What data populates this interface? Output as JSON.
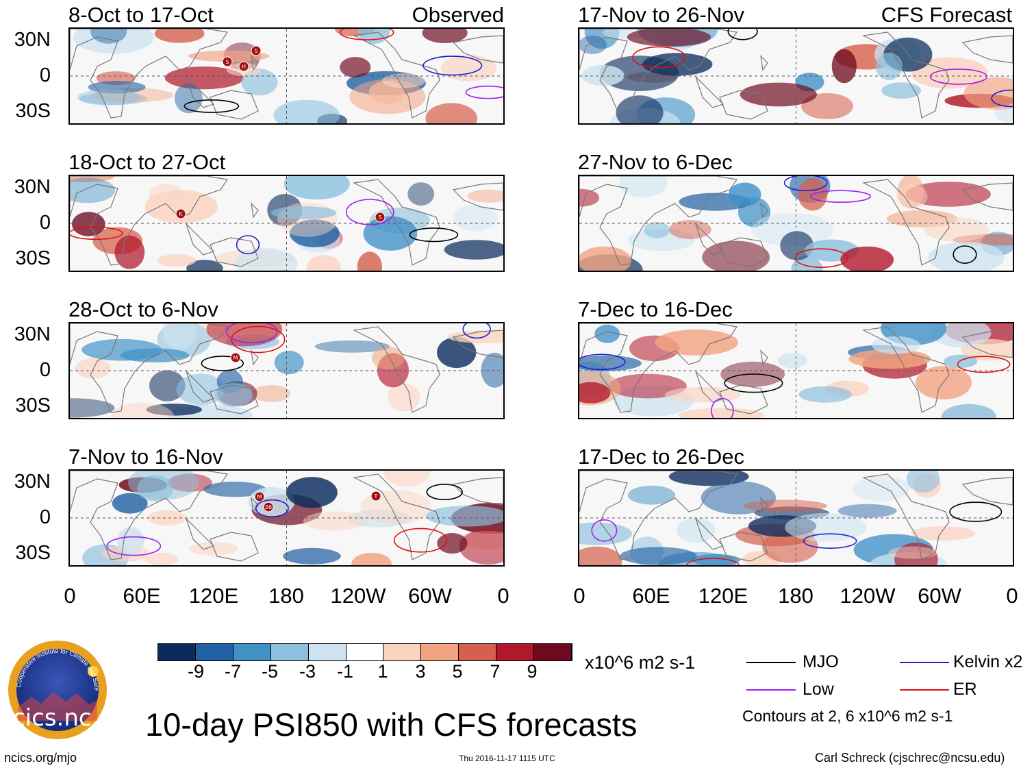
{
  "header": {
    "left_tag": "Observed",
    "right_tag": "CFS Forecast"
  },
  "observed_panels": [
    {
      "title": "8-Oct to 17-Oct",
      "storms": [
        "S",
        "S",
        "H"
      ]
    },
    {
      "title": "18-Oct to 27-Oct",
      "storms": [
        "K",
        "S"
      ]
    },
    {
      "title": "28-Oct to 6-Nov",
      "storms": [
        "M"
      ]
    },
    {
      "title": "7-Nov to 16-Nov",
      "storms": [
        "M",
        "26",
        "T"
      ]
    }
  ],
  "forecast_panels": [
    {
      "title": "17-Nov to 26-Nov"
    },
    {
      "title": "27-Nov to 6-Dec"
    },
    {
      "title": "7-Dec to 16-Dec"
    },
    {
      "title": "17-Dec to 26-Dec"
    }
  ],
  "y_axis_labels": [
    "30N",
    "0",
    "30S"
  ],
  "x_axis_labels": [
    "0",
    "60E",
    "120E",
    "180",
    "120W",
    "60W",
    "0"
  ],
  "colorbar": {
    "labels": [
      "-9",
      "-7",
      "-5",
      "-3",
      "-1",
      "1",
      "3",
      "5",
      "7",
      "9"
    ],
    "colors": [
      "#0a2b5c",
      "#2160a3",
      "#4191c6",
      "#8cc0dd",
      "#cde3f0",
      "#ffffff",
      "#fbd3c0",
      "#f2a482",
      "#d6604d",
      "#b2182b",
      "#6e0a1f"
    ],
    "units": "x10^6 m2 s-1"
  },
  "legend": {
    "items": [
      {
        "label": "MJO",
        "color": "#000000"
      },
      {
        "label": "Kelvin x2",
        "color": "#1f1fd0"
      },
      {
        "label": "Low",
        "color": "#a020f0"
      },
      {
        "label": "ER",
        "color": "#e01010"
      }
    ],
    "contours_note": "Contours at 2, 6 x10^6 m2 s-1"
  },
  "logo": {
    "text": "cics.nc",
    "ring_text": "Cooperative Institute for Climate and Satellites"
  },
  "title": "10-day PSI850 with CFS forecasts",
  "footer": {
    "left": "ncics.org/mjo",
    "center": "Thu 2016-11-17 1115 UTC",
    "right": "Carl Schreck (cjschrec@ncsu.edu)"
  }
}
